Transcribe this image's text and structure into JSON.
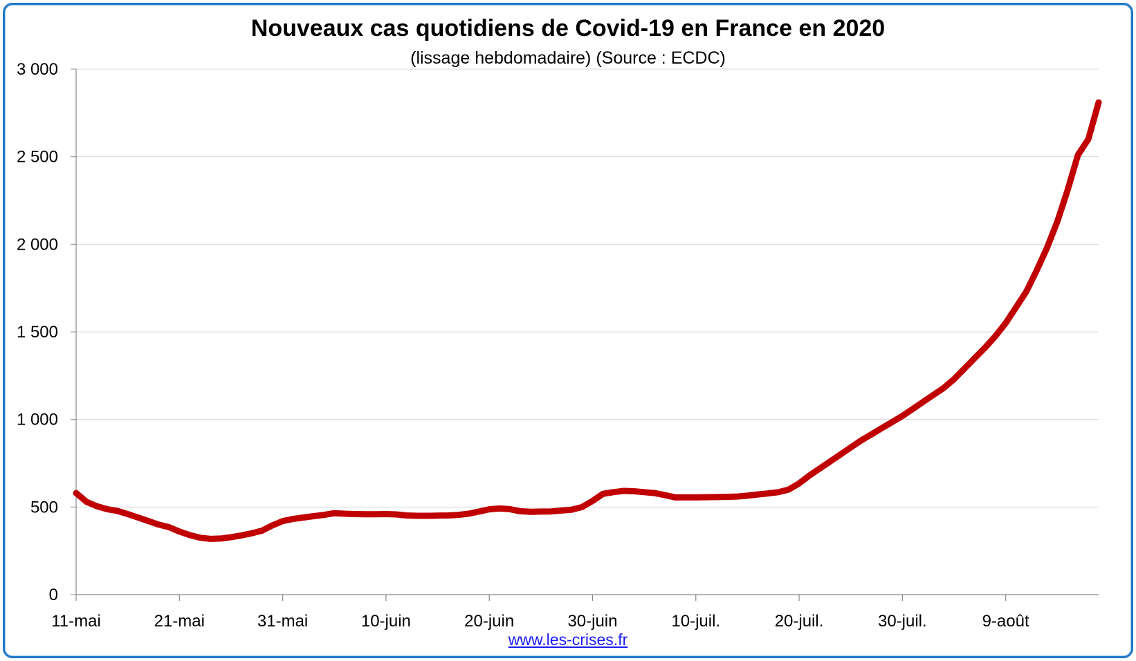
{
  "source_url": "www.les-crises.fr",
  "colors": {
    "frame": "#1f78c8",
    "series": "#c00000",
    "grid": "#d9d9d9"
  },
  "chart_data": {
    "type": "line",
    "title": "Nouveaux cas quotidiens de Covid-19 en France en 2020",
    "subtitle": "(lissage hebdomadaire) (Source : ECDC)",
    "xlabel": "",
    "ylabel": "",
    "ylim": [
      0,
      3000
    ],
    "yticks": [
      0,
      500,
      1000,
      1500,
      2000,
      2500,
      3000
    ],
    "ytick_labels": [
      "0",
      "500",
      "1 000",
      "1 500",
      "2 000",
      "2 500",
      "3 000"
    ],
    "xlim": [
      "2020-05-11",
      "2020-08-18"
    ],
    "xticks": [
      "2020-05-11",
      "2020-05-21",
      "2020-05-31",
      "2020-06-10",
      "2020-06-20",
      "2020-06-30",
      "2020-07-10",
      "2020-07-20",
      "2020-07-30",
      "2020-08-09"
    ],
    "xtick_labels": [
      "11-mai",
      "21-mai",
      "31-mai",
      "10-juin",
      "20-juin",
      "30-juin",
      "10-juil.",
      "20-juil.",
      "30-juil.",
      "9-août"
    ],
    "grid": true,
    "series": [
      {
        "color": "#c00000",
        "x": [
          "2020-05-11",
          "2020-05-12",
          "2020-05-13",
          "2020-05-14",
          "2020-05-15",
          "2020-05-16",
          "2020-05-17",
          "2020-05-18",
          "2020-05-19",
          "2020-05-20",
          "2020-05-21",
          "2020-05-22",
          "2020-05-23",
          "2020-05-24",
          "2020-05-25",
          "2020-05-26",
          "2020-05-27",
          "2020-05-28",
          "2020-05-29",
          "2020-05-30",
          "2020-05-31",
          "2020-06-01",
          "2020-06-02",
          "2020-06-03",
          "2020-06-04",
          "2020-06-05",
          "2020-06-06",
          "2020-06-07",
          "2020-06-08",
          "2020-06-09",
          "2020-06-10",
          "2020-06-11",
          "2020-06-12",
          "2020-06-13",
          "2020-06-14",
          "2020-06-15",
          "2020-06-16",
          "2020-06-17",
          "2020-06-18",
          "2020-06-19",
          "2020-06-20",
          "2020-06-21",
          "2020-06-22",
          "2020-06-23",
          "2020-06-24",
          "2020-06-25",
          "2020-06-26",
          "2020-06-27",
          "2020-06-28",
          "2020-06-29",
          "2020-06-30",
          "2020-07-01",
          "2020-07-02",
          "2020-07-03",
          "2020-07-04",
          "2020-07-05",
          "2020-07-06",
          "2020-07-07",
          "2020-07-08",
          "2020-07-09",
          "2020-07-10",
          "2020-07-11",
          "2020-07-12",
          "2020-07-13",
          "2020-07-14",
          "2020-07-15",
          "2020-07-16",
          "2020-07-17",
          "2020-07-18",
          "2020-07-19",
          "2020-07-20",
          "2020-07-21",
          "2020-07-22",
          "2020-07-23",
          "2020-07-24",
          "2020-07-25",
          "2020-07-26",
          "2020-07-27",
          "2020-07-28",
          "2020-07-29",
          "2020-07-30",
          "2020-07-31",
          "2020-08-01",
          "2020-08-02",
          "2020-08-03",
          "2020-08-04",
          "2020-08-05",
          "2020-08-06",
          "2020-08-07",
          "2020-08-08",
          "2020-08-09",
          "2020-08-10",
          "2020-08-11",
          "2020-08-12",
          "2020-08-13",
          "2020-08-14",
          "2020-08-15",
          "2020-08-16",
          "2020-08-17",
          "2020-08-18"
        ],
        "values": [
          580,
          530,
          505,
          488,
          478,
          460,
          440,
          420,
          400,
          385,
          360,
          340,
          325,
          318,
          320,
          328,
          338,
          350,
          365,
          395,
          420,
          432,
          440,
          448,
          455,
          465,
          462,
          460,
          459,
          459,
          460,
          458,
          452,
          450,
          450,
          451,
          452,
          455,
          462,
          474,
          487,
          492,
          488,
          476,
          473,
          474,
          475,
          480,
          485,
          500,
          535,
          575,
          585,
          592,
          590,
          585,
          580,
          568,
          555,
          555,
          555,
          556,
          557,
          558,
          560,
          565,
          572,
          578,
          585,
          600,
          635,
          680,
          720,
          760,
          800,
          840,
          880,
          915,
          950,
          985,
          1020,
          1060,
          1100,
          1140,
          1180,
          1230,
          1290,
          1350,
          1410,
          1475,
          1550,
          1640,
          1730,
          1850,
          1980,
          2130,
          2310,
          2510,
          2600,
          2810
        ]
      }
    ]
  }
}
